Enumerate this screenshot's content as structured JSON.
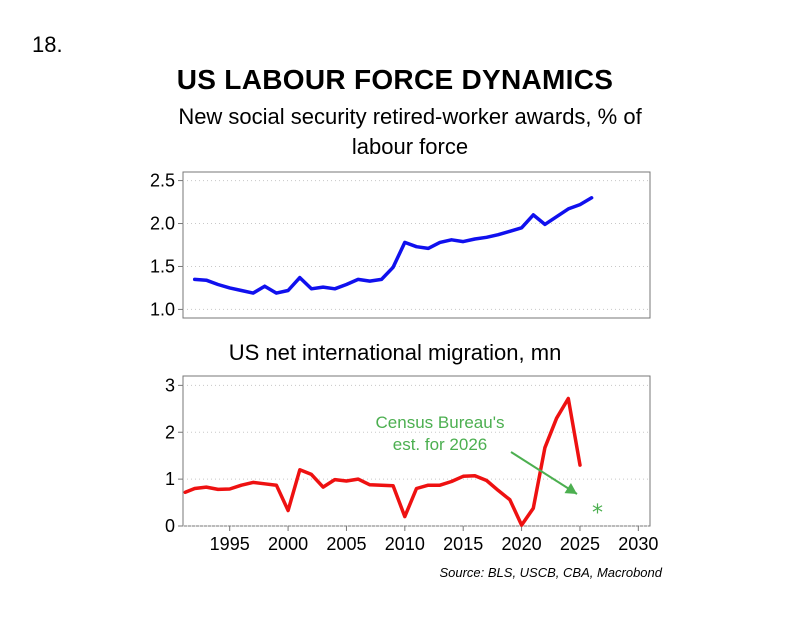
{
  "figure_number": "18.",
  "title": "US LABOUR FORCE DYNAMICS",
  "source": "Source: BLS, USCB, CBA, Macrobond",
  "colors": {
    "series_top": "#1010ee",
    "series_bottom": "#ee1111",
    "annotation": "#4caf50",
    "grid": "#c8c8c8",
    "frame": "#777777"
  },
  "chart_data": [
    {
      "type": "line",
      "title": "New social security retired-worker awards, % of labour force",
      "xlabel": "",
      "ylabel": "",
      "xlim": [
        1991,
        2031
      ],
      "ylim": [
        0.9,
        2.6
      ],
      "yticks": [
        "1.0",
        "1.5",
        "2.0",
        "2.5"
      ],
      "grid": "horizontal dotted",
      "series": [
        {
          "x": [
            1992,
            1993,
            1994,
            1995,
            1996,
            1997,
            1998,
            1999,
            2000,
            2001,
            2002,
            2003,
            2004,
            2005,
            2006,
            2007,
            2008,
            2009,
            2010,
            2011,
            2012,
            2013,
            2014,
            2015,
            2016,
            2017,
            2018,
            2019,
            2020,
            2021,
            2022,
            2023,
            2024,
            2025,
            2026
          ],
          "values": [
            1.35,
            1.34,
            1.29,
            1.25,
            1.22,
            1.19,
            1.27,
            1.19,
            1.22,
            1.37,
            1.24,
            1.26,
            1.24,
            1.29,
            1.35,
            1.33,
            1.35,
            1.49,
            1.78,
            1.73,
            1.71,
            1.78,
            1.81,
            1.79,
            1.82,
            1.84,
            1.87,
            1.91,
            1.95,
            2.1,
            1.99,
            2.08,
            2.17,
            2.22,
            2.3
          ]
        }
      ]
    },
    {
      "type": "line",
      "title": "US net international migration, mn",
      "xlabel": "",
      "ylabel": "",
      "xlim": [
        1991,
        2031
      ],
      "ylim": [
        0,
        3.2
      ],
      "yticks": [
        "0",
        "1",
        "2",
        "3"
      ],
      "xticks": [
        "1995",
        "2000",
        "2005",
        "2010",
        "2015",
        "2020",
        "2025",
        "2030"
      ],
      "grid": "horizontal dotted",
      "series": [
        {
          "x": [
            1991.2,
            1992,
            1993,
            1994,
            1995,
            1996,
            1997,
            1998,
            1999,
            2000,
            2001,
            2002,
            2003,
            2004,
            2005,
            2006,
            2007,
            2008,
            2009,
            2010,
            2011,
            2012,
            2013,
            2014,
            2015,
            2016,
            2017,
            2018,
            2019,
            2020,
            2021,
            2022,
            2023,
            2024,
            2025
          ],
          "values": [
            0.72,
            0.8,
            0.83,
            0.78,
            0.79,
            0.87,
            0.93,
            0.9,
            0.87,
            0.33,
            1.2,
            1.1,
            0.83,
            0.99,
            0.96,
            1.0,
            0.88,
            0.87,
            0.86,
            0.2,
            0.8,
            0.87,
            0.87,
            0.95,
            1.06,
            1.07,
            0.97,
            0.76,
            0.56,
            0.02,
            0.38,
            1.67,
            2.3,
            2.72,
            1.3
          ]
        }
      ],
      "annotations": [
        {
          "text_lines": [
            "Census Bureau's",
            "est. for 2026"
          ],
          "point": {
            "x": 2026.5,
            "y": 0.3
          },
          "marker": "*"
        }
      ]
    }
  ]
}
